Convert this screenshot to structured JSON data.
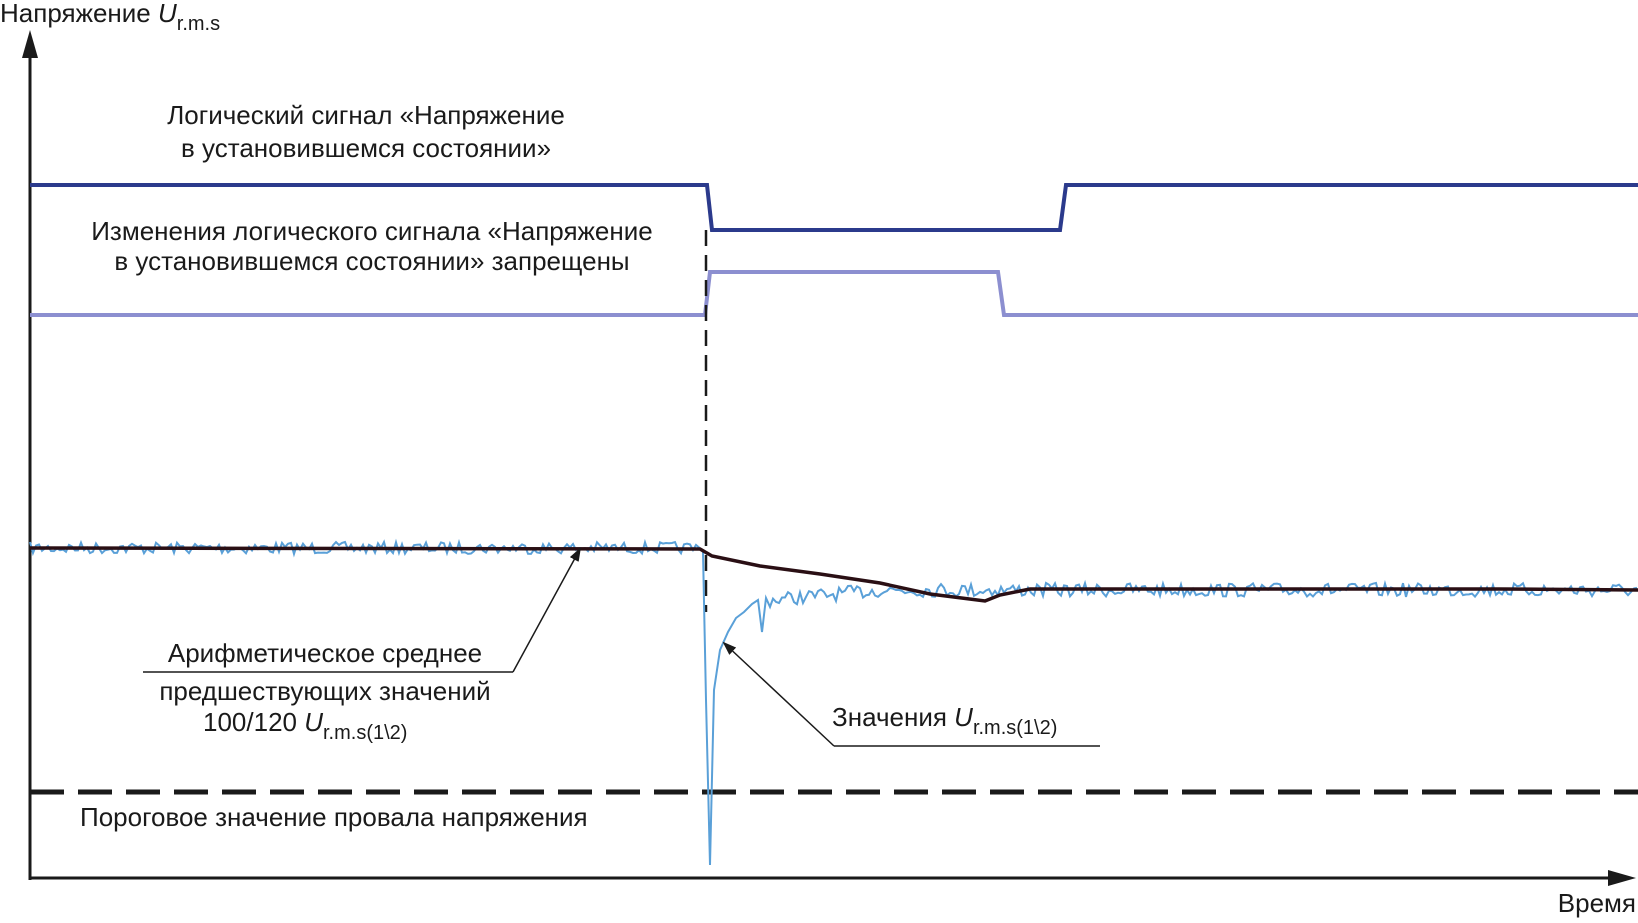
{
  "axes": {
    "y_label": "Напряжение",
    "y_label_symbol": "U",
    "y_label_subscript": "r.m.s",
    "x_label": "Время"
  },
  "signals": {
    "steady_state": {
      "label_line1": "Логический сигнал «Напряжение",
      "label_line2": "в установившемся состоянии»",
      "color": "#2b3a8c"
    },
    "change_prohibited": {
      "label_line1": "Изменения логического сигнала «Напряжение",
      "label_line2": "в установившемся состоянии» запрещены",
      "color": "#8c8fd0"
    }
  },
  "annotations": {
    "average": {
      "line1": "Арифметическое среднее",
      "line2": "предшествующих значений",
      "line3_prefix": "100/120",
      "line3_symbol": "U",
      "line3_subscript": "r.m.s(1\\2)"
    },
    "values": {
      "prefix": "Значения",
      "symbol": "U",
      "subscript": "r.m.s(1\\2)"
    },
    "threshold": {
      "label": "Пороговое значение провала напряжения"
    }
  },
  "colors": {
    "noisy_trace": "#5aa0d8",
    "average_trace": "#2a0f14",
    "axis": "#1a1a1a"
  }
}
